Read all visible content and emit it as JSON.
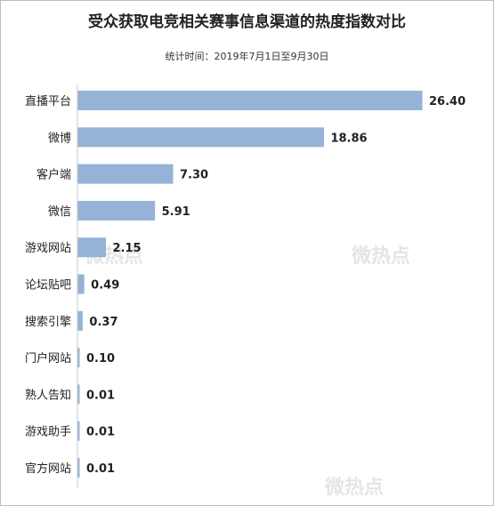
{
  "chart_data": {
    "type": "bar",
    "orientation": "horizontal",
    "title": "受众获取电竞相关赛事信息渠道的热度指数对比",
    "subtitle": "统计时间：2019年7月1日至9月30日",
    "categories": [
      "直播平台",
      "微博",
      "客户端",
      "微信",
      "游戏网站",
      "论坛贴吧",
      "搜索引擎",
      "门户网站",
      "熟人告知",
      "游戏助手",
      "官方网站"
    ],
    "values": [
      26.4,
      18.86,
      7.3,
      5.91,
      2.15,
      0.49,
      0.37,
      0.1,
      0.01,
      0.01,
      0.01
    ],
    "value_labels": [
      "26.40",
      "18.86",
      "7.30",
      "5.91",
      "2.15",
      "0.49",
      "0.37",
      "0.10",
      "0.01",
      "0.01",
      "0.01"
    ],
    "xlim": [
      0,
      26.4
    ],
    "grid": false,
    "bar_color": "#95b3d7",
    "axis_color": "#c8c8c8"
  },
  "watermark": "微热点"
}
